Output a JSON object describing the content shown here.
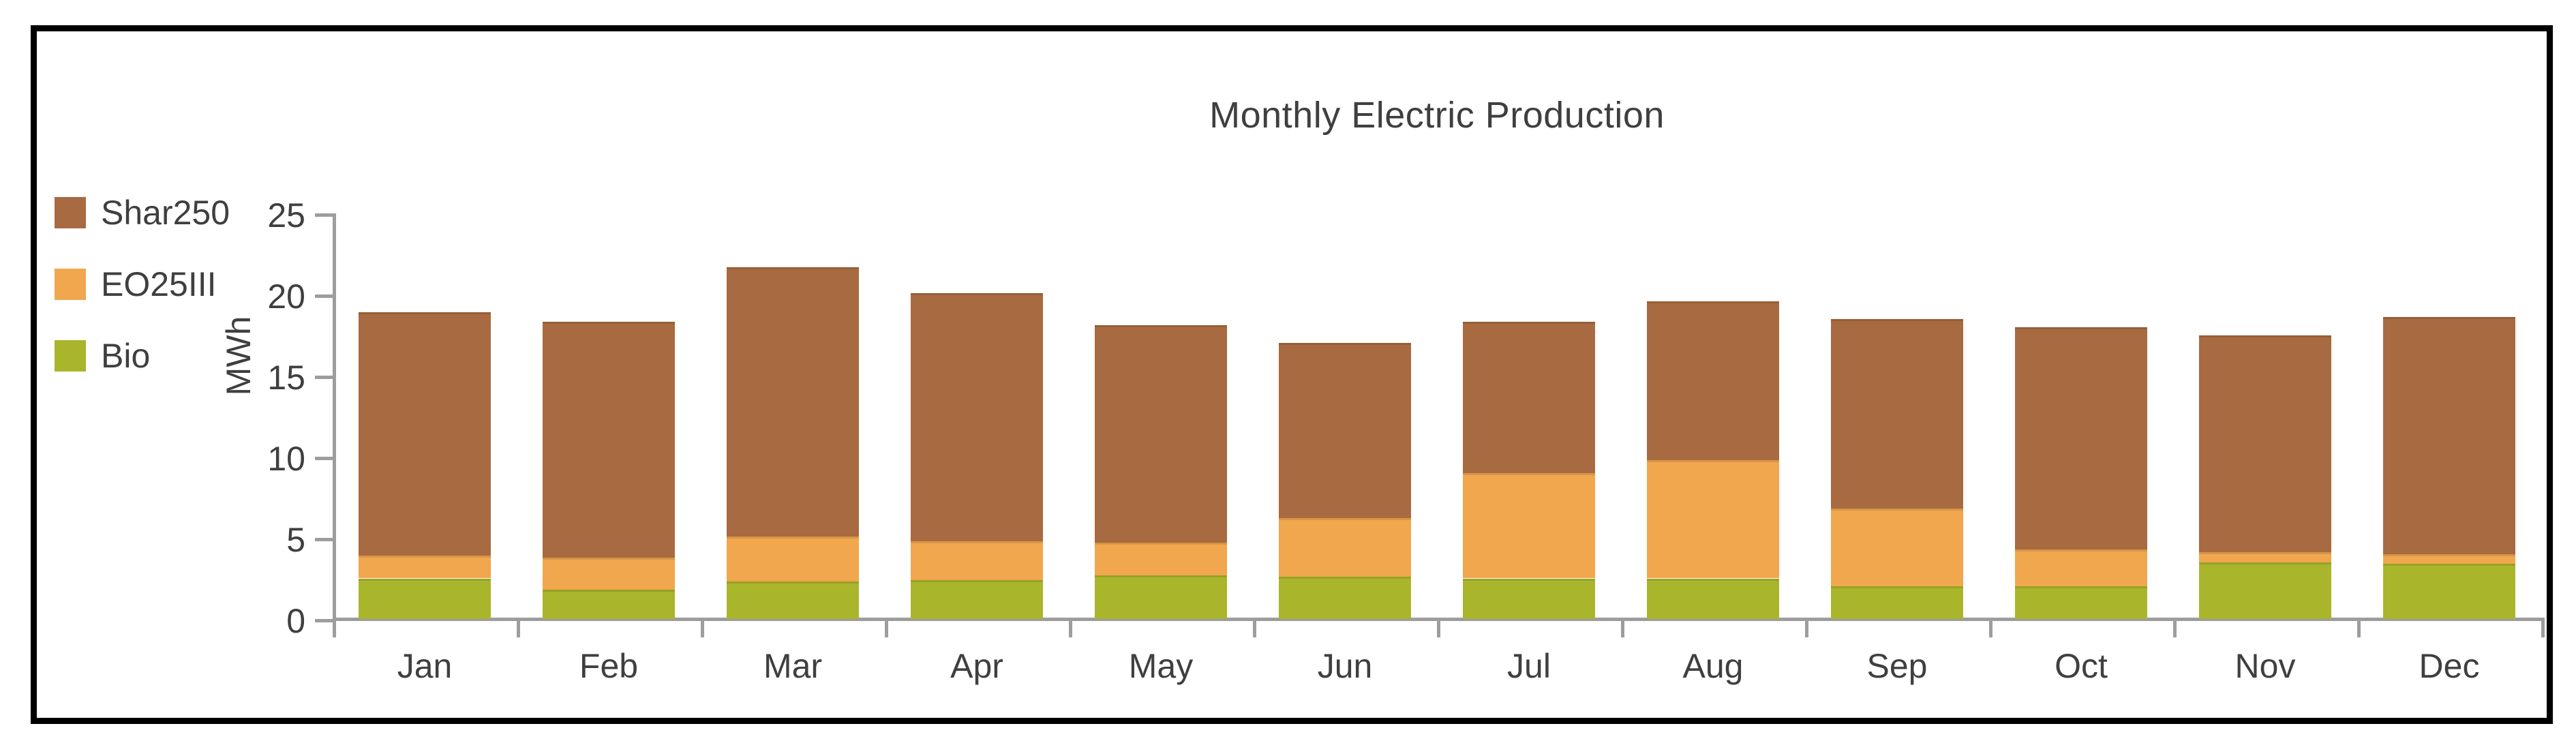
{
  "chart_data": {
    "type": "bar",
    "stacked": true,
    "title": "Monthly Electric Production",
    "ylabel": "MWh",
    "xlabel": "",
    "ylim": [
      0,
      25
    ],
    "yticks": [
      0,
      5,
      10,
      15,
      20,
      25
    ],
    "grid": false,
    "categories": [
      "Jan",
      "Feb",
      "Mar",
      "Apr",
      "May",
      "Jun",
      "Jul",
      "Aug",
      "Sep",
      "Oct",
      "Nov",
      "Dec"
    ],
    "series": [
      {
        "name": "Bio",
        "color": "#A9B52B",
        "values": [
          2.5,
          1.8,
          2.3,
          2.4,
          2.7,
          2.6,
          2.5,
          2.5,
          2.0,
          2.0,
          3.5,
          3.4
        ]
      },
      {
        "name": "EO25III",
        "color": "#F0A74E",
        "values": [
          1.4,
          2.0,
          2.8,
          2.4,
          2.0,
          3.6,
          6.5,
          7.3,
          4.8,
          2.3,
          0.6,
          0.6
        ]
      },
      {
        "name": "Shar250",
        "color": "#A86A40",
        "values": [
          15.0,
          14.5,
          16.6,
          15.3,
          13.4,
          10.8,
          9.3,
          9.8,
          11.7,
          13.7,
          13.4,
          14.6
        ]
      }
    ],
    "totals": [
      18.9,
      18.3,
      21.7,
      20.1,
      18.1,
      17.0,
      18.3,
      19.6,
      18.5,
      18.0,
      17.5,
      18.6
    ],
    "legend": {
      "position": "top-left",
      "order": [
        "Shar250",
        "EO25III",
        "Bio"
      ]
    },
    "colors": {
      "text": "#3F3F3F",
      "axis": "#9D9D9D",
      "frame_border": "#000000",
      "background": "#FFFFFF"
    }
  }
}
